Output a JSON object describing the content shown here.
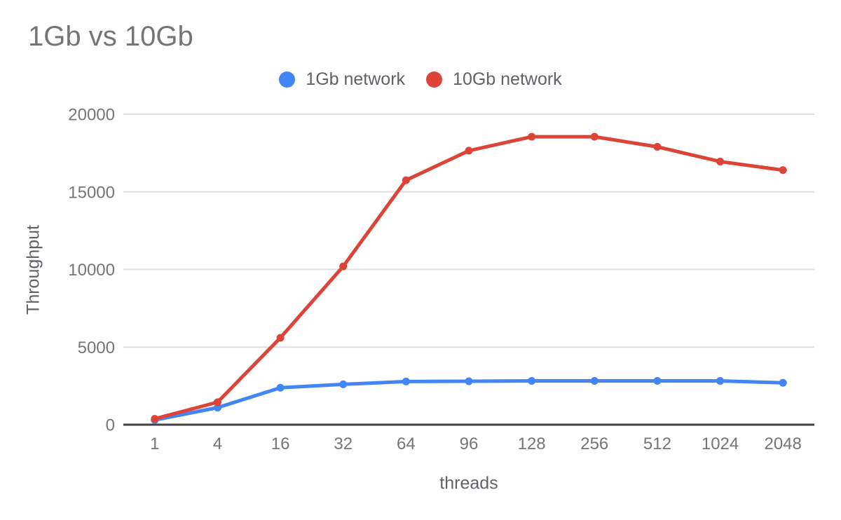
{
  "page": {
    "background_color": "#ffffff",
    "title_color": "#757575",
    "tick_label_color": "#757575",
    "axis_title_color": "#5f6368"
  },
  "chart_data": {
    "type": "line",
    "title": "1Gb vs 10Gb",
    "xlabel": "threads",
    "ylabel": "Throughput",
    "categories": [
      "1",
      "4",
      "16",
      "32",
      "64",
      "96",
      "128",
      "256",
      "512",
      "1024",
      "2048"
    ],
    "series": [
      {
        "name": "1Gb network",
        "color": "#4285f4",
        "values": [
          300,
          1100,
          2380,
          2600,
          2780,
          2800,
          2820,
          2820,
          2820,
          2820,
          2700
        ]
      },
      {
        "name": "10Gb network",
        "color": "#db4437",
        "values": [
          380,
          1450,
          5600,
          10200,
          15750,
          17650,
          18550,
          18550,
          17900,
          16950,
          16400
        ]
      }
    ],
    "ylim": [
      0,
      20000
    ],
    "y_ticks": [
      0,
      5000,
      10000,
      15000,
      20000
    ],
    "grid": true,
    "gridline_color": "#e0e0e0",
    "axis_line_color": "#424242",
    "legend_position": "top"
  }
}
